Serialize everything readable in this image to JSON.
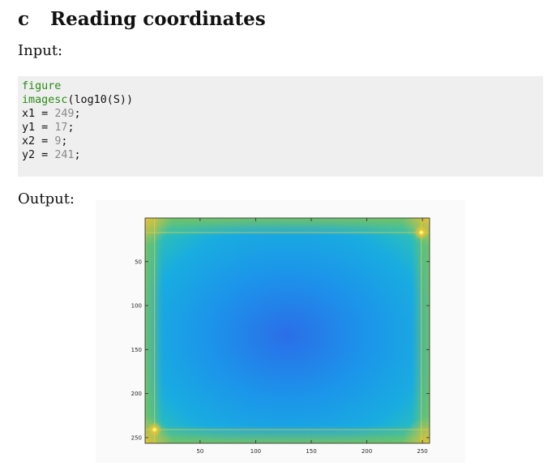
{
  "section": {
    "letter": "c",
    "title": "Reading coordinates"
  },
  "input_label": "Input:",
  "output_label": "Output:",
  "code": {
    "line1": "figure",
    "line2_fn": "imagesc",
    "line2_args": "(log10(S))",
    "line3_var": "x1 = ",
    "line3_val": "249",
    "line4_var": "y1 = ",
    "line4_val": "17",
    "line5_var": "x2 = ",
    "line5_val": "9",
    "line6_var": "y2 = ",
    "line6_val": "241",
    "terminator": ";"
  },
  "chart_data": {
    "type": "heatmap",
    "title": "",
    "xlabel": "",
    "ylabel": "",
    "xlim": [
      0.5,
      256.5
    ],
    "ylim": [
      0.5,
      256.5
    ],
    "y_reversed": true,
    "xticks": [
      50,
      100,
      150,
      200,
      250
    ],
    "yticks": [
      50,
      100,
      150,
      200,
      250
    ],
    "colormap": [
      "#3d35d8",
      "#2c7bf0",
      "#16aee2",
      "#2bc2b3",
      "#8ac64c",
      "#f0b62c",
      "#f9f01a"
    ],
    "dominant_color": "#1ea8e8",
    "bright_points": [
      {
        "x": 249,
        "y": 17
      },
      {
        "x": 9,
        "y": 241
      }
    ]
  }
}
